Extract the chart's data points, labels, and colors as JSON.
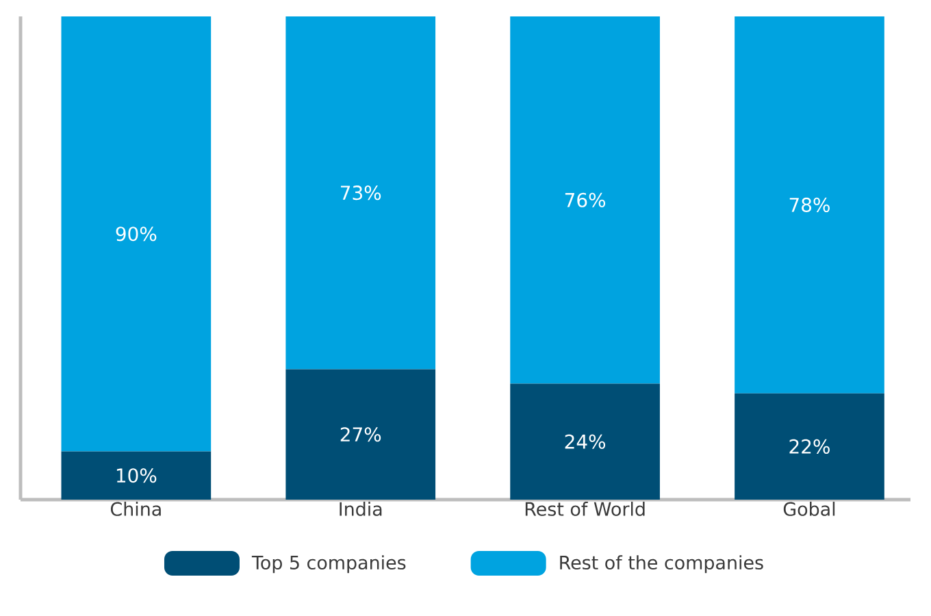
{
  "chart_data": {
    "type": "bar",
    "stacked": true,
    "categories": [
      "China",
      "India",
      "Rest of World",
      "Gobal"
    ],
    "series": [
      {
        "name": "Top 5 companies",
        "color": "#004e75",
        "values": [
          10,
          27,
          24,
          22
        ],
        "value_labels": [
          "10%",
          "27%",
          "24%",
          "22%"
        ]
      },
      {
        "name": "Rest of the companies",
        "color": "#00a3e0",
        "values": [
          90,
          73,
          76,
          78
        ],
        "value_labels": [
          "90%",
          "73%",
          "76%",
          "78%"
        ]
      }
    ],
    "legend": "bottom"
  }
}
